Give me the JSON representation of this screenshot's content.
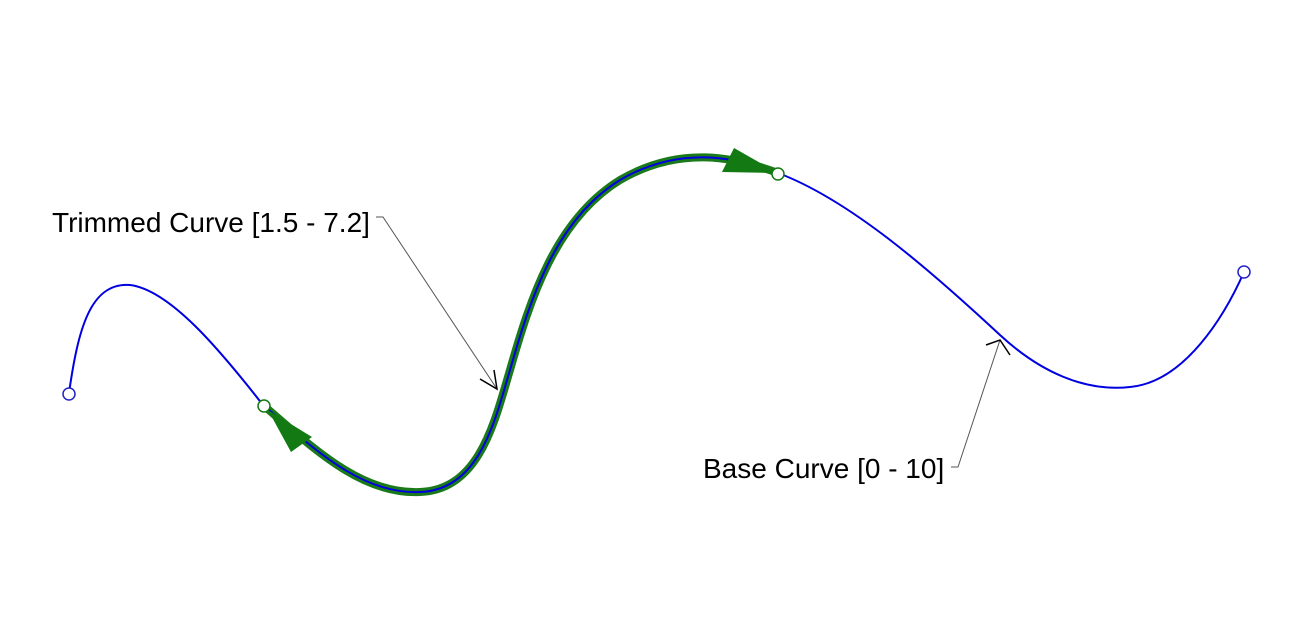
{
  "diagram": {
    "trimmed_label": "Trimmed Curve [1.5 - 7.2]",
    "base_label": "Base Curve [0 - 10]",
    "colors": {
      "base_curve": "#0000e0",
      "trimmed_curve": "#1a7a1a",
      "arrow_fill": "#137a13",
      "endpoint_base": "#2323c8",
      "endpoint_trimmed": "#137a13",
      "leader": "#555555"
    }
  }
}
